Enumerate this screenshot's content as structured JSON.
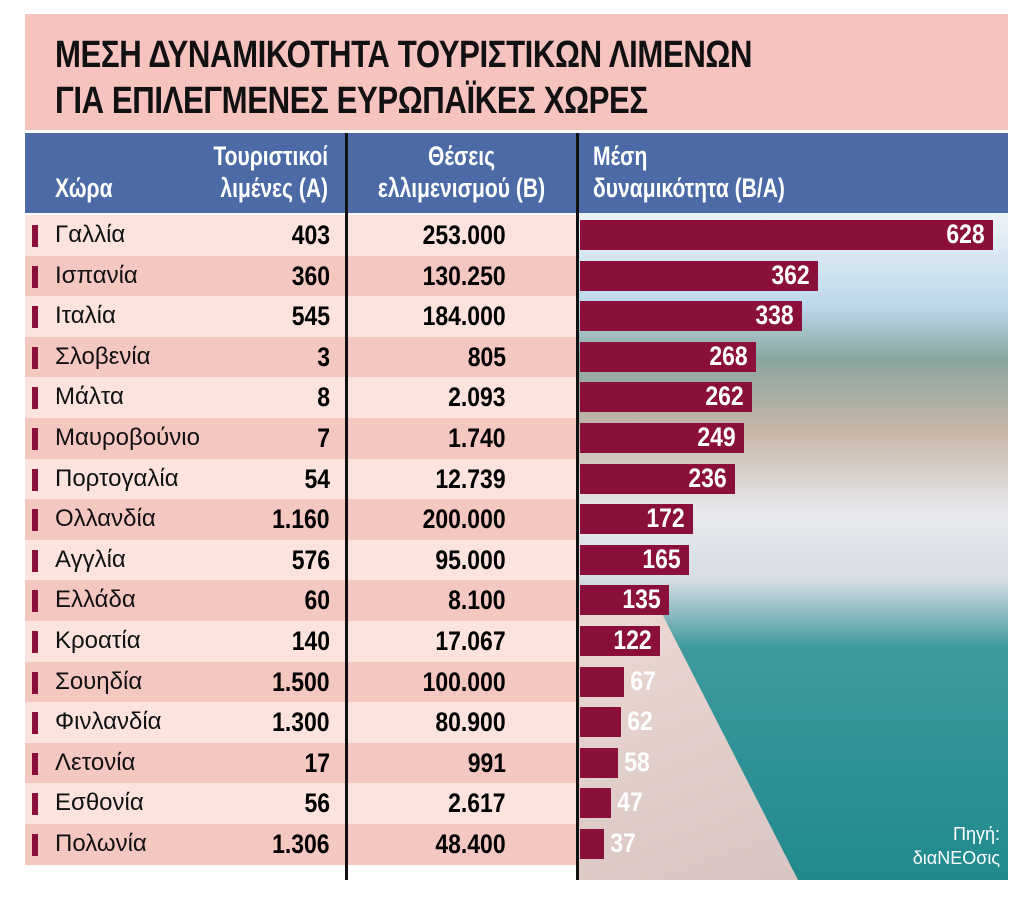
{
  "title": {
    "line1": "ΜΕΣΗ ΔΥΝΑΜΙΚΟΤΗΤΑ ΤΟΥΡΙΣΤΙΚΩΝ ΛΙΜΕΝΩΝ",
    "line2": "ΓΙΑ ΕΠΙΛΕΓΜΕΝΕΣ ΕΥΡΩΠΑΪΚΕΣ ΧΩΡΕΣ"
  },
  "headers": {
    "country": "Χώρα",
    "a1": "Τουριστικοί",
    "a2": "λιμένες (Α)",
    "b1": "Θέσεις",
    "b2": "ελλιμενισμού (Β)",
    "c1": "Μέση",
    "c2": "δυναμικότητα (Β/Α)"
  },
  "rows": [
    {
      "country": "Γαλλία",
      "a": "403",
      "b": "253.000",
      "c": "628"
    },
    {
      "country": "Ισπανία",
      "a": "360",
      "b": "130.250",
      "c": "362"
    },
    {
      "country": "Ιταλία",
      "a": "545",
      "b": "184.000",
      "c": "338"
    },
    {
      "country": "Σλοβενία",
      "a": "3",
      "b": "805",
      "c": "268"
    },
    {
      "country": "Μάλτα",
      "a": "8",
      "b": "2.093",
      "c": "262"
    },
    {
      "country": "Μαυροβούνιο",
      "a": "7",
      "b": "1.740",
      "c": "249"
    },
    {
      "country": "Πορτογαλία",
      "a": "54",
      "b": "12.739",
      "c": "236"
    },
    {
      "country": "Ολλανδία",
      "a": "1.160",
      "b": "200.000",
      "c": "172"
    },
    {
      "country": "Αγγλία",
      "a": "576",
      "b": "95.000",
      "c": "165"
    },
    {
      "country": "Ελλάδα",
      "a": "60",
      "b": "8.100",
      "c": "135"
    },
    {
      "country": "Κροατία",
      "a": "140",
      "b": "17.067",
      "c": "122"
    },
    {
      "country": "Σουηδία",
      "a": "1.500",
      "b": "100.000",
      "c": "67"
    },
    {
      "country": "Φινλανδία",
      "a": "1.300",
      "b": "80.900",
      "c": "62"
    },
    {
      "country": "Λετονία",
      "a": "17",
      "b": "991",
      "c": "58"
    },
    {
      "country": "Εσθονία",
      "a": "56",
      "b": "2.617",
      "c": "47"
    },
    {
      "country": "Πολωνία",
      "a": "1.306",
      "b": "48.400",
      "c": "37"
    }
  ],
  "chart_data": {
    "type": "bar",
    "orientation": "horizontal",
    "categories": [
      "Γαλλία",
      "Ισπανία",
      "Ιταλία",
      "Σλοβενία",
      "Μάλτα",
      "Μαυροβούνιο",
      "Πορτογαλία",
      "Ολλανδία",
      "Αγγλία",
      "Ελλάδα",
      "Κροατία",
      "Σουηδία",
      "Φινλανδία",
      "Λετονία",
      "Εσθονία",
      "Πολωνία"
    ],
    "values": [
      628,
      362,
      338,
      268,
      262,
      249,
      236,
      172,
      165,
      135,
      122,
      67,
      62,
      58,
      47,
      37
    ],
    "xlim": [
      0,
      628
    ],
    "bar_color": "#8a0f3a"
  },
  "source": {
    "line1": "Πηγή:",
    "line2": "διαΝΕΟσις"
  },
  "colors": {
    "title_bg": "#f6c3bf",
    "header_bg": "#4c6ba6",
    "row_light": "#fde3dd",
    "row_dark": "#f5c7c1",
    "bar": "#8a0f3a"
  }
}
